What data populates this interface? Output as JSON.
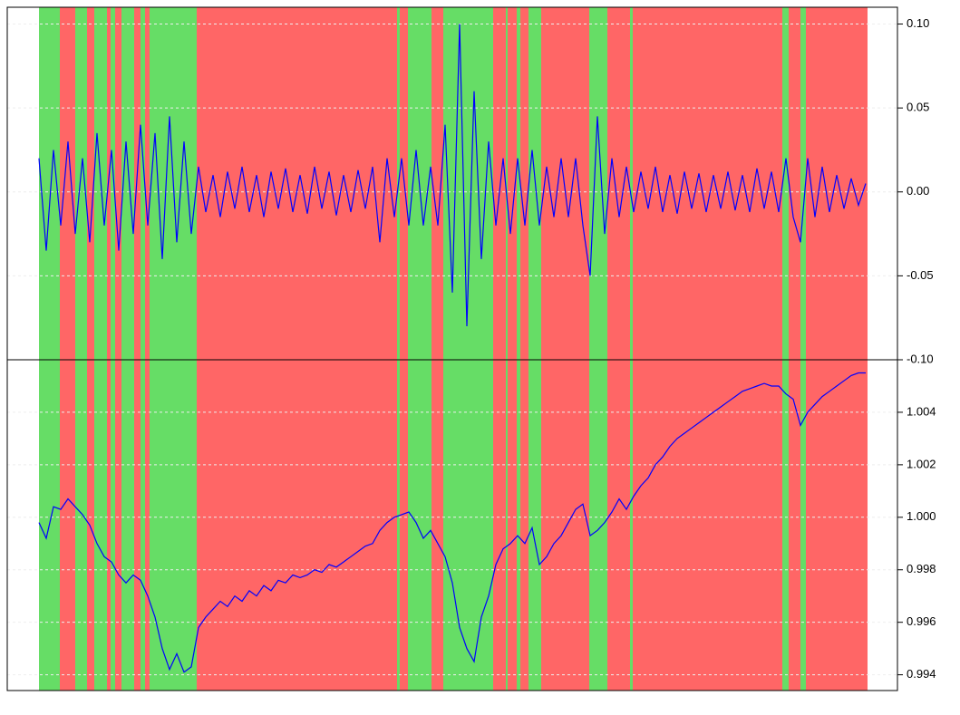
{
  "chart_data": [
    {
      "type": "line",
      "xlim": [
        8,
        990
      ],
      "ylim": [
        -0.1,
        0.11
      ],
      "yticks": [
        {
          "value": 0.1,
          "label": "0.10"
        },
        {
          "value": 0.05,
          "label": "0.05"
        },
        {
          "value": 0.0,
          "label": "0.00"
        },
        {
          "value": -0.05,
          "label": "-0.05"
        },
        {
          "value": -0.1,
          "label": "-0.10"
        }
      ],
      "grid": true,
      "bands": [
        {
          "start": 43,
          "end": 66,
          "color": "#66dd66"
        },
        {
          "start": 66,
          "end": 83,
          "color": "#ff6666"
        },
        {
          "start": 83,
          "end": 96,
          "color": "#66dd66"
        },
        {
          "start": 96,
          "end": 104,
          "color": "#ff6666"
        },
        {
          "start": 104,
          "end": 118,
          "color": "#66dd66"
        },
        {
          "start": 118,
          "end": 122,
          "color": "#ff6666"
        },
        {
          "start": 122,
          "end": 127,
          "color": "#66dd66"
        },
        {
          "start": 127,
          "end": 134,
          "color": "#ff6666"
        },
        {
          "start": 134,
          "end": 148,
          "color": "#66dd66"
        },
        {
          "start": 148,
          "end": 155,
          "color": "#ff6666"
        },
        {
          "start": 155,
          "end": 160,
          "color": "#66dd66"
        },
        {
          "start": 160,
          "end": 165,
          "color": "#ff6666"
        },
        {
          "start": 165,
          "end": 217,
          "color": "#66dd66"
        },
        {
          "start": 217,
          "end": 438,
          "color": "#ff6666"
        },
        {
          "start": 438,
          "end": 441,
          "color": "#66dd66"
        },
        {
          "start": 441,
          "end": 450,
          "color": "#ff6666"
        },
        {
          "start": 450,
          "end": 476,
          "color": "#66dd66"
        },
        {
          "start": 476,
          "end": 489,
          "color": "#ff6666"
        },
        {
          "start": 489,
          "end": 544,
          "color": "#66dd66"
        },
        {
          "start": 544,
          "end": 558,
          "color": "#ff6666"
        },
        {
          "start": 558,
          "end": 560,
          "color": "#66dd66"
        },
        {
          "start": 560,
          "end": 570,
          "color": "#ff6666"
        },
        {
          "start": 570,
          "end": 574,
          "color": "#66dd66"
        },
        {
          "start": 574,
          "end": 583,
          "color": "#ff6666"
        },
        {
          "start": 583,
          "end": 597,
          "color": "#66dd66"
        },
        {
          "start": 597,
          "end": 650,
          "color": "#ff6666"
        },
        {
          "start": 650,
          "end": 670,
          "color": "#66dd66"
        },
        {
          "start": 670,
          "end": 695,
          "color": "#ff6666"
        },
        {
          "start": 695,
          "end": 698,
          "color": "#66dd66"
        },
        {
          "start": 698,
          "end": 863,
          "color": "#ff6666"
        },
        {
          "start": 863,
          "end": 870,
          "color": "#66dd66"
        },
        {
          "start": 870,
          "end": 883,
          "color": "#ff6666"
        },
        {
          "start": 883,
          "end": 889,
          "color": "#66dd66"
        },
        {
          "start": 889,
          "end": 957,
          "color": "#ff6666"
        }
      ],
      "x": [
        43,
        51,
        59,
        67,
        75,
        83,
        91,
        99,
        107,
        115,
        123,
        131,
        139,
        147,
        155,
        163,
        171,
        179,
        187,
        195,
        203,
        211,
        219,
        227,
        235,
        243,
        251,
        259,
        267,
        275,
        283,
        291,
        299,
        307,
        315,
        323,
        331,
        339,
        347,
        355,
        363,
        371,
        379,
        387,
        395,
        403,
        411,
        419,
        427,
        435,
        443,
        451,
        459,
        467,
        475,
        483,
        491,
        499,
        507,
        515,
        523,
        531,
        539,
        547,
        555,
        563,
        571,
        579,
        587,
        595,
        603,
        611,
        619,
        627,
        635,
        643,
        651,
        659,
        667,
        675,
        683,
        691,
        699,
        707,
        715,
        723,
        731,
        739,
        747,
        755,
        763,
        771,
        779,
        787,
        795,
        803,
        811,
        819,
        827,
        835,
        843,
        851,
        859,
        867,
        875,
        883,
        891,
        899,
        907,
        915,
        923,
        931,
        939,
        947,
        955
      ],
      "series": [
        {
          "color": "#0000ff",
          "values": [
            0.02,
            -0.035,
            0.025,
            -0.02,
            0.03,
            -0.025,
            0.02,
            -0.03,
            0.035,
            -0.02,
            0.025,
            -0.035,
            0.03,
            -0.025,
            0.04,
            -0.02,
            0.035,
            -0.04,
            0.045,
            -0.03,
            0.03,
            -0.025,
            0.015,
            -0.012,
            0.01,
            -0.015,
            0.012,
            -0.01,
            0.015,
            -0.012,
            0.01,
            -0.015,
            0.012,
            -0.01,
            0.014,
            -0.012,
            0.01,
            -0.013,
            0.015,
            -0.01,
            0.012,
            -0.014,
            0.01,
            -0.012,
            0.013,
            -0.01,
            0.015,
            -0.03,
            0.02,
            -0.015,
            0.02,
            -0.02,
            0.025,
            -0.02,
            0.015,
            -0.02,
            0.04,
            -0.06,
            0.1,
            -0.08,
            0.06,
            -0.04,
            0.03,
            -0.02,
            0.02,
            -0.025,
            0.02,
            -0.02,
            0.025,
            -0.02,
            0.015,
            -0.015,
            0.02,
            -0.015,
            0.02,
            -0.02,
            -0.05,
            0.045,
            -0.025,
            0.02,
            -0.015,
            0.015,
            -0.012,
            0.012,
            -0.01,
            0.015,
            -0.012,
            0.01,
            -0.013,
            0.012,
            -0.01,
            0.011,
            -0.012,
            0.01,
            -0.01,
            0.012,
            -0.011,
            0.01,
            -0.012,
            0.014,
            -0.01,
            0.012,
            -0.012,
            0.02,
            -0.015,
            -0.03,
            0.02,
            -0.015,
            0.015,
            -0.012,
            0.01,
            -0.01,
            0.008,
            -0.008,
            0.005
          ]
        }
      ]
    },
    {
      "type": "line",
      "xlim": [
        8,
        990
      ],
      "ylim": [
        0.9934,
        1.006
      ],
      "yticks": [
        1.004,
        1.002,
        {
          "value": 1.0,
          "label": "1.000"
        },
        0.998,
        0.996,
        0.994
      ],
      "grid": true,
      "x": [
        43,
        51,
        59,
        67,
        75,
        83,
        91,
        99,
        107,
        115,
        123,
        131,
        139,
        147,
        155,
        163,
        171,
        179,
        187,
        195,
        203,
        211,
        219,
        227,
        235,
        243,
        251,
        259,
        267,
        275,
        283,
        291,
        299,
        307,
        315,
        323,
        331,
        339,
        347,
        355,
        363,
        371,
        379,
        387,
        395,
        403,
        411,
        419,
        427,
        435,
        443,
        451,
        459,
        467,
        475,
        483,
        491,
        499,
        507,
        515,
        523,
        531,
        539,
        547,
        555,
        563,
        571,
        579,
        587,
        595,
        603,
        611,
        619,
        627,
        635,
        643,
        651,
        659,
        667,
        675,
        683,
        691,
        699,
        707,
        715,
        723,
        731,
        739,
        747,
        755,
        763,
        771,
        779,
        787,
        795,
        803,
        811,
        819,
        827,
        835,
        843,
        851,
        859,
        867,
        875,
        883,
        891,
        899,
        907,
        915,
        923,
        931,
        939,
        947,
        955
      ],
      "series": [
        {
          "color": "#0000ff",
          "values": [
            0.9998,
            0.9992,
            1.0004,
            1.0003,
            1.0007,
            1.0004,
            1.0001,
            0.9997,
            0.999,
            0.9985,
            0.9983,
            0.9978,
            0.9975,
            0.9978,
            0.9976,
            0.997,
            0.9962,
            0.995,
            0.9942,
            0.9948,
            0.9941,
            0.9943,
            0.9958,
            0.9962,
            0.9965,
            0.9968,
            0.9966,
            0.997,
            0.9968,
            0.9972,
            0.997,
            0.9974,
            0.9972,
            0.9976,
            0.9975,
            0.9978,
            0.9977,
            0.9978,
            0.998,
            0.9979,
            0.9982,
            0.9981,
            0.9983,
            0.9985,
            0.9987,
            0.9989,
            0.999,
            0.9995,
            0.9998,
            1.0,
            1.0001,
            1.0002,
            0.9998,
            0.9992,
            0.9995,
            0.999,
            0.9985,
            0.9975,
            0.9958,
            0.995,
            0.9945,
            0.9962,
            0.997,
            0.9982,
            0.9988,
            0.999,
            0.9993,
            0.999,
            0.9996,
            0.9982,
            0.9985,
            0.999,
            0.9993,
            0.9998,
            1.0003,
            1.0005,
            0.9993,
            0.9995,
            0.9998,
            1.0002,
            1.0007,
            1.0003,
            1.0008,
            1.0012,
            1.0015,
            1.002,
            1.0023,
            1.0027,
            1.003,
            1.0032,
            1.0034,
            1.0036,
            1.0038,
            1.004,
            1.0042,
            1.0044,
            1.0046,
            1.0048,
            1.0049,
            1.005,
            1.0051,
            1.005,
            1.005,
            1.0047,
            1.0045,
            1.0035,
            1.004,
            1.0043,
            1.0046,
            1.0048,
            1.005,
            1.0052,
            1.0054,
            1.0055,
            1.0055
          ]
        }
      ]
    }
  ]
}
